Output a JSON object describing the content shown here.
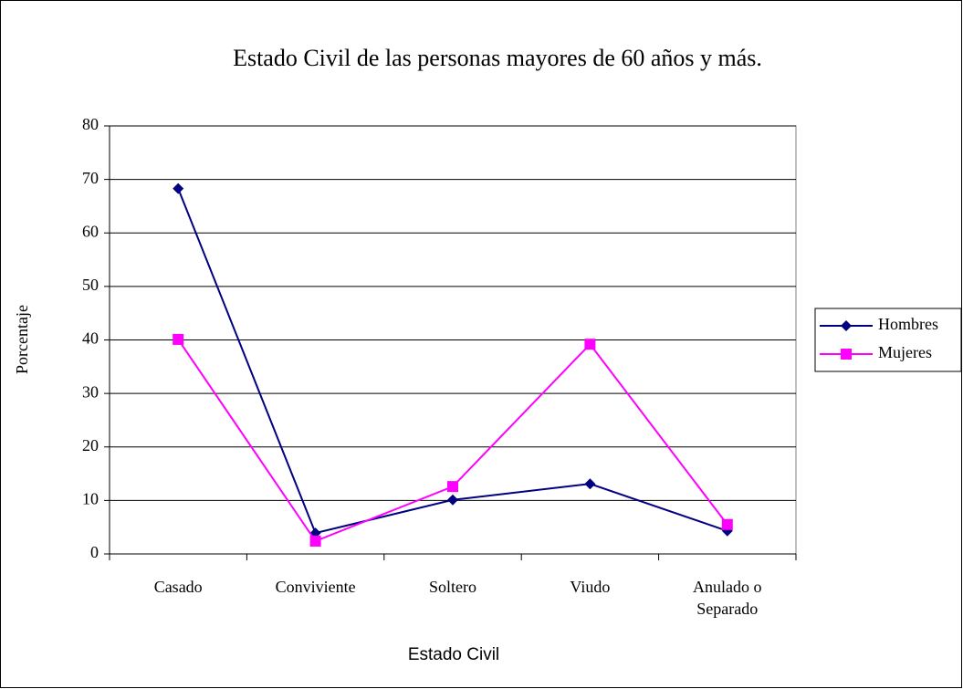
{
  "chart_data": {
    "type": "line",
    "title": "Estado Civil de las personas mayores de 60 años y más.",
    "x_label": "Estado Civil",
    "y_label": "Porcentaje",
    "categories": [
      "Casado",
      "Conviviente",
      "Soltero",
      "Viudo",
      "Anulado o Separado"
    ],
    "series": [
      {
        "name": "Hombres",
        "color": "#000080",
        "marker": "diamond",
        "values": [
          68.3,
          3.9,
          10.1,
          13.1,
          4.3
        ]
      },
      {
        "name": "Mujeres",
        "color": "#ff00ff",
        "marker": "square",
        "values": [
          40.1,
          2.4,
          12.6,
          39.2,
          5.5
        ]
      }
    ],
    "ylim": [
      0,
      80
    ],
    "yticks": [
      0,
      10,
      20,
      30,
      40,
      50,
      60,
      70,
      80
    ],
    "grid": true,
    "legend": "right"
  }
}
